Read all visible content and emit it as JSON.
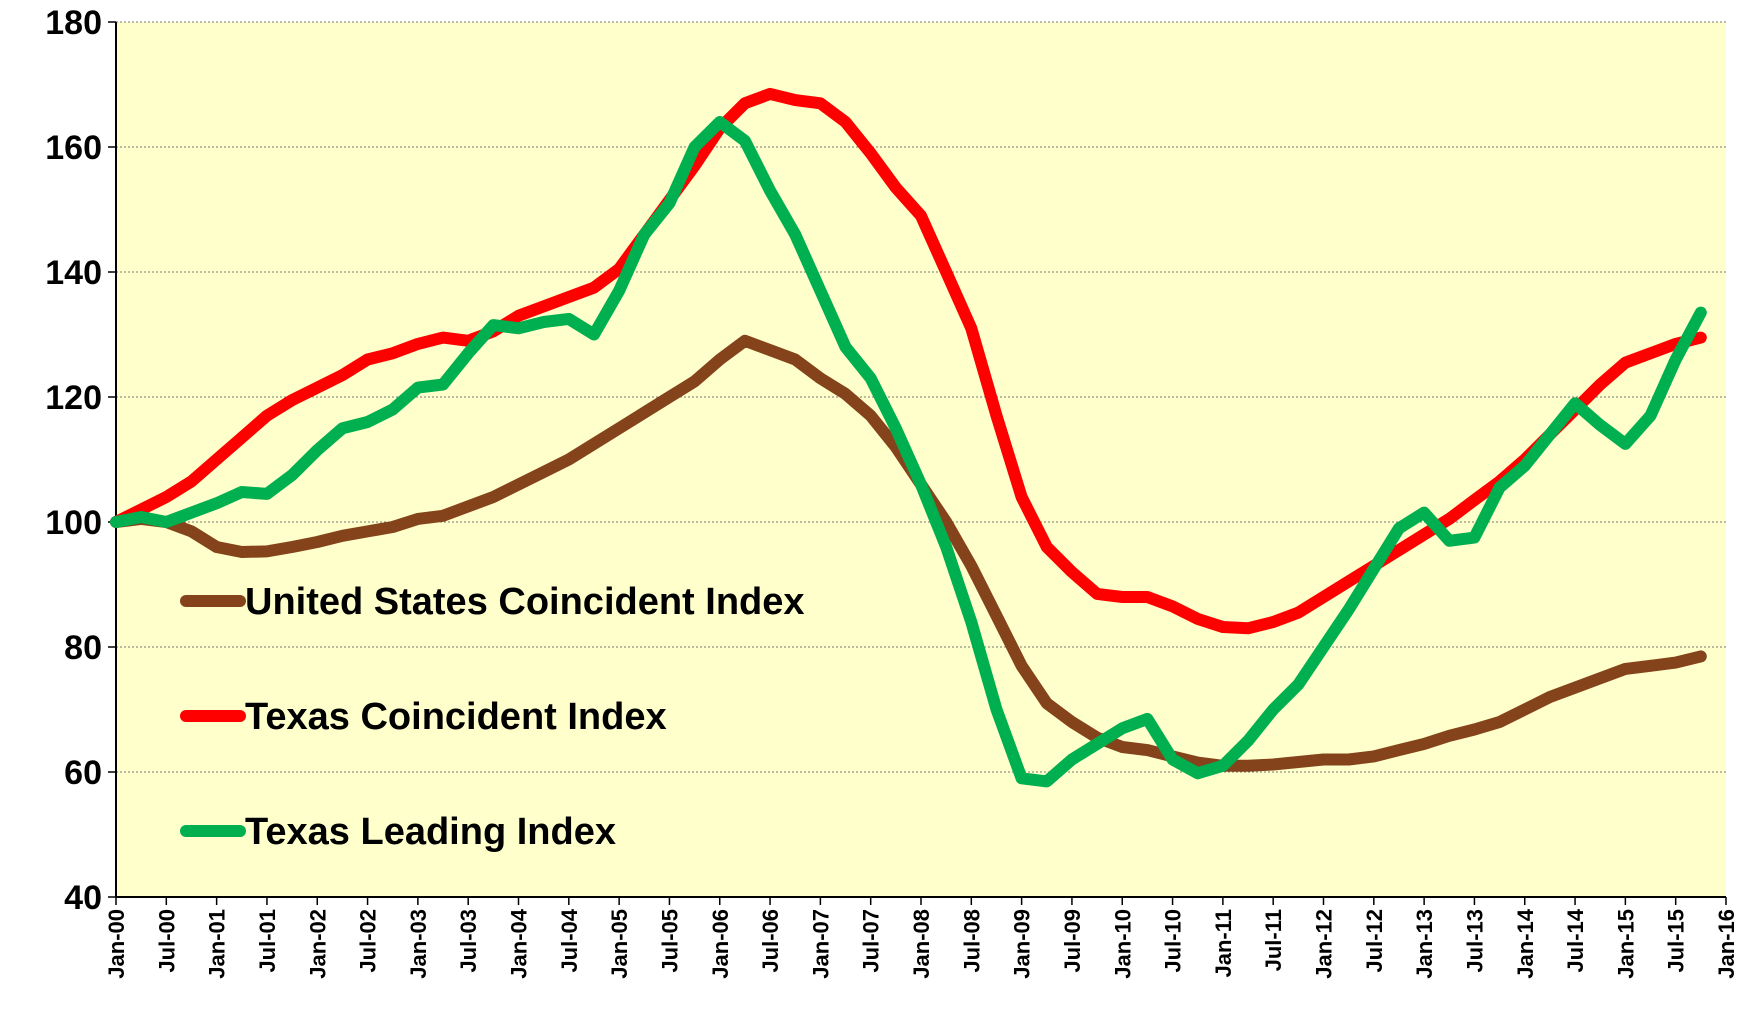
{
  "chart_data": {
    "type": "line",
    "x": [
      "2000-01",
      "2000-04",
      "2000-07",
      "2000-10",
      "2001-01",
      "2001-04",
      "2001-07",
      "2001-10",
      "2002-01",
      "2002-04",
      "2002-07",
      "2002-10",
      "2003-01",
      "2003-04",
      "2003-07",
      "2003-10",
      "2004-01",
      "2004-04",
      "2004-07",
      "2004-10",
      "2005-01",
      "2005-04",
      "2005-07",
      "2005-10",
      "2006-01",
      "2006-04",
      "2006-07",
      "2006-10",
      "2007-01",
      "2007-04",
      "2007-07",
      "2007-10",
      "2008-01",
      "2008-04",
      "2008-07",
      "2008-10",
      "2009-01",
      "2009-04",
      "2009-07",
      "2009-10",
      "2010-01",
      "2010-04",
      "2010-07",
      "2010-10",
      "2011-01",
      "2011-04",
      "2011-07",
      "2011-10",
      "2012-01",
      "2012-04",
      "2012-07",
      "2012-10",
      "2013-01",
      "2013-04",
      "2013-07",
      "2013-10",
      "2014-01",
      "2014-04",
      "2014-07",
      "2014-10",
      "2015-01",
      "2015-04",
      "2015-07",
      "2015-10"
    ],
    "series": [
      {
        "name": "United States Coincident Index",
        "color": "#84431a",
        "values": [
          100,
          100.5,
          100,
          98.5,
          96,
          95.2,
          95.3,
          96,
          96.8,
          97.8,
          98.5,
          99.2,
          100.5,
          101,
          102.5,
          104,
          106,
          108,
          110,
          112.5,
          115,
          117.5,
          120,
          122.5,
          126,
          129,
          127.5,
          126,
          123,
          120.5,
          117,
          112,
          106,
          100,
          93,
          85,
          77,
          71,
          68,
          65.5,
          64,
          63.5,
          62.5,
          61.5,
          61,
          61,
          61.2,
          61.6,
          62,
          62,
          62.5,
          63.5,
          64.5,
          65.8,
          66.8,
          68,
          70,
          72,
          73.5,
          75,
          76.5,
          77,
          77.5,
          78.5
        ]
      },
      {
        "name": "Texas Coincident Index",
        "color": "#ff0000",
        "values": [
          100,
          102,
          104,
          106.5,
          110,
          113.5,
          117,
          119.5,
          121.5,
          123.5,
          126,
          127,
          128.5,
          129.5,
          129,
          130.5,
          133,
          134.5,
          136,
          137.5,
          140.5,
          146,
          151.5,
          157,
          163,
          167,
          168.5,
          167.5,
          167,
          164,
          159,
          153.5,
          149,
          140,
          131,
          117,
          104,
          96,
          92,
          88.5,
          88,
          88,
          86.5,
          84.5,
          83.2,
          83,
          84,
          85.5,
          88,
          90.5,
          93,
          95.5,
          98,
          100.5,
          103.5,
          106.5,
          110,
          114,
          118,
          122,
          125.5,
          127,
          128.5,
          129.5
        ]
      },
      {
        "name": "Texas Leading Index",
        "color": "#00b050",
        "values": [
          100,
          100.8,
          100,
          101.5,
          103,
          104.8,
          104.5,
          107.5,
          111.5,
          115,
          116,
          118,
          121.5,
          122,
          127,
          131.5,
          131,
          132,
          132.5,
          130,
          137,
          146,
          151,
          160,
          164,
          161,
          153,
          146,
          137,
          128,
          123,
          115,
          106,
          96,
          84,
          70,
          59,
          58.5,
          62,
          64.5,
          67,
          68.5,
          62,
          59.8,
          61,
          65,
          70,
          74,
          80,
          86,
          92.5,
          99,
          101.5,
          97,
          97.5,
          105.5,
          109,
          114,
          119,
          115.5,
          112.5,
          117,
          126,
          133.5
        ]
      }
    ],
    "xlim": [
      "2000-01",
      "2016-01"
    ],
    "xticks": [
      {
        "value": "2000-01",
        "label": "Jan-00"
      },
      {
        "value": "2000-07",
        "label": "Jul-00"
      },
      {
        "value": "2001-01",
        "label": "Jan-01"
      },
      {
        "value": "2001-07",
        "label": "Jul-01"
      },
      {
        "value": "2002-01",
        "label": "Jan-02"
      },
      {
        "value": "2002-07",
        "label": "Jul-02"
      },
      {
        "value": "2003-01",
        "label": "Jan-03"
      },
      {
        "value": "2003-07",
        "label": "Jul-03"
      },
      {
        "value": "2004-01",
        "label": "Jan-04"
      },
      {
        "value": "2004-07",
        "label": "Jul-04"
      },
      {
        "value": "2005-01",
        "label": "Jan-05"
      },
      {
        "value": "2005-07",
        "label": "Jul-05"
      },
      {
        "value": "2006-01",
        "label": "Jan-06"
      },
      {
        "value": "2006-07",
        "label": "Jul-06"
      },
      {
        "value": "2007-01",
        "label": "Jan-07"
      },
      {
        "value": "2007-07",
        "label": "Jul-07"
      },
      {
        "value": "2008-01",
        "label": "Jan-08"
      },
      {
        "value": "2008-07",
        "label": "Jul-08"
      },
      {
        "value": "2009-01",
        "label": "Jan-09"
      },
      {
        "value": "2009-07",
        "label": "Jul-09"
      },
      {
        "value": "2010-01",
        "label": "Jan-10"
      },
      {
        "value": "2010-07",
        "label": "Jul-10"
      },
      {
        "value": "2011-01",
        "label": "Jan-11"
      },
      {
        "value": "2011-07",
        "label": "Jul-11"
      },
      {
        "value": "2012-01",
        "label": "Jan-12"
      },
      {
        "value": "2012-07",
        "label": "Jul-12"
      },
      {
        "value": "2013-01",
        "label": "Jan-13"
      },
      {
        "value": "2013-07",
        "label": "Jul-13"
      },
      {
        "value": "2014-01",
        "label": "Jan-14"
      },
      {
        "value": "2014-07",
        "label": "Jul-14"
      },
      {
        "value": "2015-01",
        "label": "Jan-15"
      },
      {
        "value": "2015-07",
        "label": "Jul-15"
      },
      {
        "value": "2016-01",
        "label": "Jan-16"
      }
    ],
    "ylim": [
      40,
      180
    ],
    "yticks": [
      40,
      60,
      80,
      100,
      120,
      140,
      160,
      180
    ],
    "grid": true,
    "legend": "left"
  }
}
